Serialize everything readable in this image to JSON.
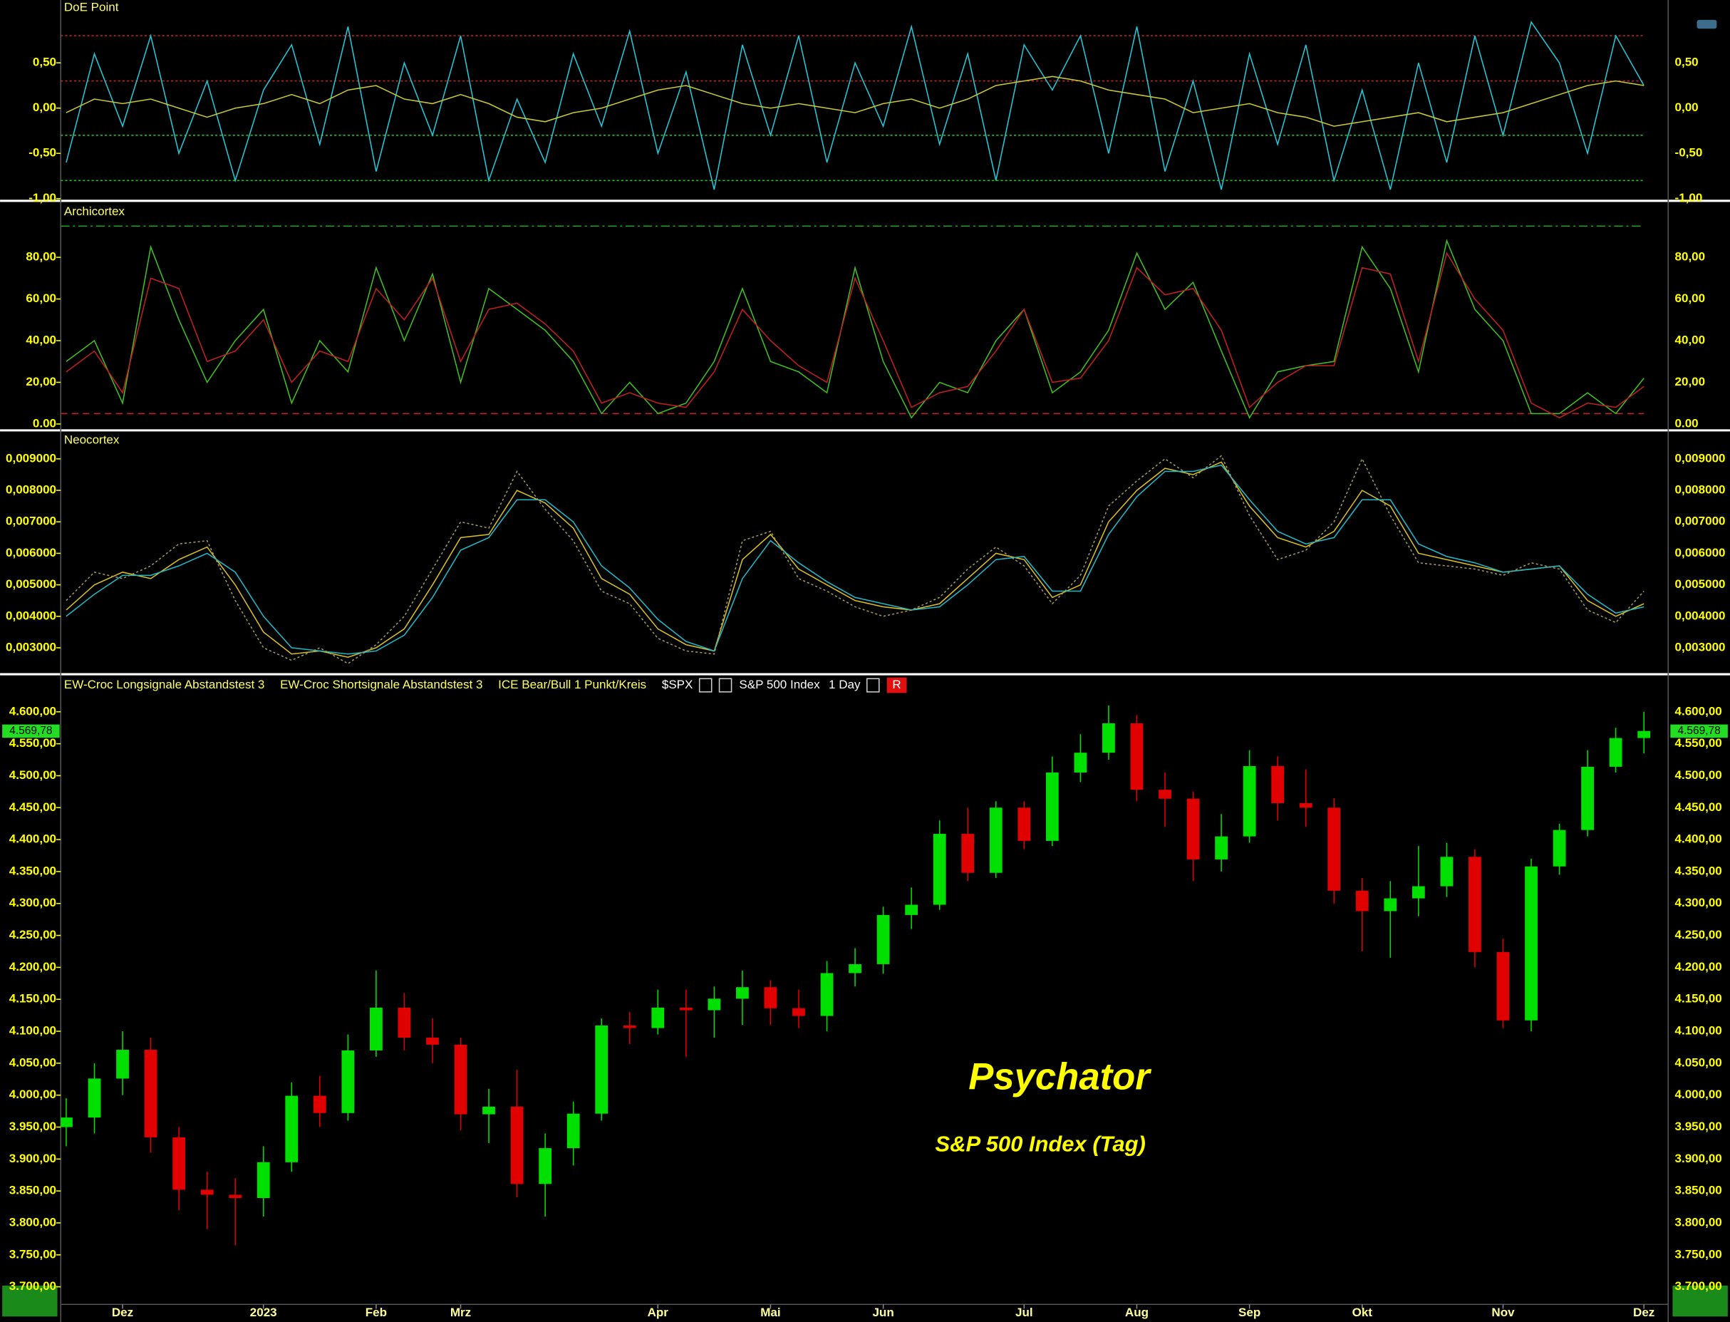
{
  "chart_data": [
    {
      "type": "line",
      "title": "DoE Point",
      "ylim": [
        -1.0,
        1.17
      ],
      "yticks": [
        {
          "value": 0.5,
          "label": "0,50"
        },
        {
          "value": 0,
          "label": "0,00"
        },
        {
          "value": -0.5,
          "label": "-0,50"
        },
        {
          "value": -1,
          "label": "-1,00"
        }
      ],
      "hlines": [
        {
          "value": 0.8,
          "color": "#d02020",
          "style": "dotted"
        },
        {
          "value": 0.3,
          "color": "#d02020",
          "style": "dotted"
        },
        {
          "value": -0.3,
          "color": "#20c020",
          "style": "dotted"
        },
        {
          "value": -0.8,
          "color": "#20c020",
          "style": "dotted"
        }
      ],
      "series": [
        {
          "color": "#22c8d8",
          "style": "solid",
          "values": [
            -0.6,
            0.6,
            -0.2,
            0.8,
            -0.5,
            0.3,
            -0.8,
            0.2,
            0.7,
            -0.4,
            0.9,
            -0.7,
            0.5,
            -0.3,
            0.8,
            -0.8,
            0.1,
            -0.6,
            0.6,
            -0.2,
            0.85,
            -0.5,
            0.4,
            -0.9,
            0.7,
            -0.3,
            0.8,
            -0.6,
            0.5,
            -0.2,
            0.9,
            -0.4,
            0.6,
            -0.8,
            0.7,
            0.2,
            0.8,
            -0.5,
            0.9,
            -0.7,
            0.3,
            -0.9,
            0.6,
            -0.4,
            0.7,
            -0.8,
            0.2,
            -0.9,
            0.5,
            -0.6,
            0.8,
            -0.3,
            0.95,
            0.5,
            -0.5,
            0.8,
            0.25
          ]
        },
        {
          "color": "#c8c832",
          "style": "solid",
          "values": [
            -0.05,
            0.1,
            0.05,
            0.1,
            0.0,
            -0.1,
            0.0,
            0.05,
            0.15,
            0.05,
            0.2,
            0.25,
            0.1,
            0.05,
            0.15,
            0.05,
            -0.1,
            -0.15,
            -0.05,
            0.0,
            0.1,
            0.2,
            0.25,
            0.15,
            0.05,
            0.0,
            0.05,
            0.0,
            -0.05,
            0.05,
            0.1,
            0.0,
            0.1,
            0.25,
            0.3,
            0.35,
            0.3,
            0.2,
            0.15,
            0.1,
            -0.05,
            0.0,
            0.05,
            -0.05,
            -0.1,
            -0.2,
            -0.15,
            -0.1,
            -0.05,
            -0.15,
            -0.1,
            -0.05,
            0.05,
            0.15,
            0.25,
            0.3,
            0.25
          ]
        }
      ]
    },
    {
      "type": "line",
      "title": "Archicortex",
      "ylim": [
        -2,
        105
      ],
      "yticks": [
        {
          "value": 80,
          "label": "80,00"
        },
        {
          "value": 60,
          "label": "60,00"
        },
        {
          "value": 40,
          "label": "40,00"
        },
        {
          "value": 20,
          "label": "20,00"
        },
        {
          "value": 0,
          "label": "0.00"
        }
      ],
      "hlines": [
        {
          "value": 95,
          "color": "#20a020",
          "style": "dashdot"
        },
        {
          "value": 5,
          "color": "#c02020",
          "style": "dashed"
        }
      ],
      "series": [
        {
          "color": "#40c020",
          "style": "solid",
          "values": [
            30,
            40,
            10,
            85,
            50,
            20,
            40,
            55,
            10,
            40,
            25,
            75,
            40,
            72,
            20,
            65,
            55,
            45,
            30,
            5,
            20,
            5,
            10,
            30,
            65,
            30,
            25,
            15,
            75,
            30,
            3,
            20,
            15,
            40,
            55,
            15,
            25,
            45,
            82,
            55,
            68,
            35,
            3,
            25,
            28,
            30,
            85,
            65,
            25,
            88,
            55,
            40,
            5,
            5,
            15,
            5,
            22
          ]
        },
        {
          "color": "#c02020",
          "style": "solid",
          "values": [
            25,
            35,
            15,
            70,
            65,
            30,
            35,
            50,
            20,
            35,
            30,
            65,
            50,
            70,
            30,
            55,
            58,
            48,
            35,
            10,
            15,
            10,
            8,
            25,
            55,
            40,
            28,
            20,
            70,
            40,
            8,
            15,
            18,
            35,
            55,
            20,
            22,
            40,
            75,
            62,
            65,
            45,
            8,
            20,
            28,
            28,
            75,
            72,
            30,
            82,
            60,
            45,
            10,
            3,
            10,
            8,
            18
          ]
        }
      ]
    },
    {
      "type": "line",
      "title": "Neocortex",
      "ylim": [
        0.0023,
        0.0098
      ],
      "yticks": [
        {
          "value": 0.009,
          "label": "0,009000"
        },
        {
          "value": 0.008,
          "label": "0,008000"
        },
        {
          "value": 0.007,
          "label": "0,007000"
        },
        {
          "value": 0.006,
          "label": "0,006000"
        },
        {
          "value": 0.005,
          "label": "0,005000"
        },
        {
          "value": 0.004,
          "label": "0,004000"
        },
        {
          "value": 0.003,
          "label": "0,003000"
        }
      ],
      "hlines": [],
      "series": [
        {
          "color": "#d8c020",
          "style": "solid",
          "values": [
            0.0042,
            0.005,
            0.0054,
            0.0052,
            0.0058,
            0.0062,
            0.005,
            0.0035,
            0.0028,
            0.0029,
            0.0027,
            0.003,
            0.0036,
            0.005,
            0.0065,
            0.0066,
            0.008,
            0.0076,
            0.0068,
            0.0052,
            0.0047,
            0.0036,
            0.0031,
            0.0029,
            0.0058,
            0.0066,
            0.0055,
            0.005,
            0.0045,
            0.0043,
            0.0042,
            0.0044,
            0.0052,
            0.006,
            0.0058,
            0.0046,
            0.005,
            0.007,
            0.008,
            0.0087,
            0.0085,
            0.0089,
            0.0075,
            0.0065,
            0.0062,
            0.0067,
            0.008,
            0.0075,
            0.006,
            0.0058,
            0.0056,
            0.0054,
            0.0055,
            0.0056,
            0.0045,
            0.004,
            0.0044
          ]
        },
        {
          "color": "#20b8c8",
          "style": "solid",
          "values": [
            0.004,
            0.0047,
            0.0053,
            0.0053,
            0.0056,
            0.006,
            0.0054,
            0.004,
            0.003,
            0.0029,
            0.0028,
            0.0029,
            0.0034,
            0.0046,
            0.0061,
            0.0065,
            0.0077,
            0.0077,
            0.007,
            0.0056,
            0.0049,
            0.0039,
            0.0032,
            0.0029,
            0.0052,
            0.0064,
            0.0057,
            0.0051,
            0.0046,
            0.0044,
            0.0042,
            0.0043,
            0.005,
            0.0058,
            0.0059,
            0.0048,
            0.0048,
            0.0066,
            0.0078,
            0.0086,
            0.0086,
            0.0088,
            0.0077,
            0.0067,
            0.0063,
            0.0065,
            0.0077,
            0.0077,
            0.0063,
            0.0059,
            0.0057,
            0.0054,
            0.0055,
            0.0056,
            0.0047,
            0.0041,
            0.0043
          ]
        },
        {
          "color": "#a09860",
          "style": "dotted",
          "values": [
            0.0045,
            0.0054,
            0.0052,
            0.0056,
            0.0063,
            0.0064,
            0.0045,
            0.003,
            0.0026,
            0.003,
            0.0025,
            0.0031,
            0.004,
            0.0055,
            0.007,
            0.0068,
            0.0086,
            0.0074,
            0.0064,
            0.0048,
            0.0044,
            0.0033,
            0.0029,
            0.0028,
            0.0064,
            0.0067,
            0.0052,
            0.0048,
            0.0043,
            0.004,
            0.0042,
            0.0046,
            0.0055,
            0.0062,
            0.0056,
            0.0044,
            0.0053,
            0.0075,
            0.0083,
            0.009,
            0.0084,
            0.0091,
            0.0072,
            0.0058,
            0.0061,
            0.007,
            0.009,
            0.0072,
            0.0057,
            0.0056,
            0.0055,
            0.0053,
            0.0057,
            0.0055,
            0.0042,
            0.0038,
            0.0048
          ]
        }
      ]
    },
    {
      "type": "candlestick",
      "title": "Psychator",
      "subtitle": "S&P 500 Index (Tag)",
      "indicators": [
        "EW-Croc Longsignale Abstandstest 3",
        "EW-Croc Shortsignale Abstandstest 3",
        "ICE Bear/Bull 1 Punkt/Kreis"
      ],
      "symbol": "$SPX",
      "name": "S&P 500 Index",
      "interval": "1 Day",
      "button": "R",
      "up_color": "#00e000",
      "down_color": "#e00000",
      "last_price": {
        "value": 4569.78,
        "label": "4.569,78"
      },
      "ylim": [
        3676,
        4626
      ],
      "yticks": [
        {
          "value": 4600,
          "label": "4.600,00"
        },
        {
          "value": 4550,
          "label": "4.550,00"
        },
        {
          "value": 4500,
          "label": "4.500,00"
        },
        {
          "value": 4450,
          "label": "4.450,00"
        },
        {
          "value": 4400,
          "label": "4.400,00"
        },
        {
          "value": 4350,
          "label": "4.350,00"
        },
        {
          "value": 4300,
          "label": "4.300,00"
        },
        {
          "value": 4250,
          "label": "4.250,00"
        },
        {
          "value": 4200,
          "label": "4.200,00"
        },
        {
          "value": 4150,
          "label": "4.150,00"
        },
        {
          "value": 4100,
          "label": "4.100,00"
        },
        {
          "value": 4050,
          "label": "4.050,00"
        },
        {
          "value": 4000,
          "label": "4.000,00"
        },
        {
          "value": 3950,
          "label": "3.950,00"
        },
        {
          "value": 3900,
          "label": "3.900,00"
        },
        {
          "value": 3850,
          "label": "3.850,00"
        },
        {
          "value": 3800,
          "label": "3.800,00"
        },
        {
          "value": 3750,
          "label": "3.750,00"
        },
        {
          "value": 3700,
          "label": "3.700,00"
        }
      ],
      "categories": [
        null,
        null,
        "Dez",
        null,
        null,
        null,
        null,
        "2023",
        null,
        null,
        null,
        "Feb",
        null,
        null,
        "Mrz",
        null,
        null,
        null,
        null,
        null,
        null,
        "Apr",
        null,
        null,
        null,
        "Mai",
        null,
        null,
        null,
        "Jun",
        null,
        null,
        null,
        null,
        "Jul",
        null,
        null,
        null,
        "Aug",
        null,
        null,
        null,
        "Sep",
        null,
        null,
        null,
        "Okt",
        null,
        null,
        null,
        null,
        "Nov",
        null,
        null,
        null,
        null,
        "Dez"
      ],
      "open": [
        3950,
        3965,
        4026,
        4071,
        3934,
        3852,
        3844,
        3839,
        3895,
        3999,
        3972,
        4070,
        4137,
        4090,
        4079,
        3970,
        3982,
        3861,
        3917,
        3971,
        4109,
        4105,
        4137,
        4133,
        4151,
        4169,
        4136,
        4124,
        4191,
        4205,
        4282,
        4298,
        4409,
        4348,
        4450,
        4398,
        4505,
        4536,
        4582,
        4478,
        4464,
        4369,
        4405,
        4515,
        4457,
        4450,
        4320,
        4288,
        4308,
        4327,
        4373,
        4224,
        4117,
        4358,
        4415,
        4514,
        4559
      ],
      "high": [
        3995,
        4050,
        4100,
        4090,
        3950,
        3880,
        3870,
        3920,
        4020,
        4030,
        4095,
        4195,
        4160,
        4120,
        4090,
        4010,
        4040,
        3940,
        3990,
        4120,
        4130,
        4165,
        4165,
        4170,
        4195,
        4180,
        4165,
        4210,
        4230,
        4295,
        4325,
        4430,
        4450,
        4460,
        4460,
        4530,
        4565,
        4610,
        4595,
        4505,
        4475,
        4440,
        4540,
        4530,
        4510,
        4465,
        4340,
        4335,
        4390,
        4395,
        4385,
        4245,
        4370,
        4425,
        4540,
        4575,
        4600
      ],
      "low": [
        3920,
        3940,
        4000,
        3910,
        3820,
        3790,
        3765,
        3810,
        3880,
        3950,
        3960,
        4060,
        4070,
        4050,
        3945,
        3925,
        3840,
        3810,
        3890,
        3960,
        4080,
        4095,
        4060,
        4090,
        4110,
        4110,
        4105,
        4100,
        4170,
        4190,
        4260,
        4290,
        4335,
        4340,
        4385,
        4390,
        4490,
        4525,
        4460,
        4420,
        4335,
        4350,
        4395,
        4430,
        4420,
        4300,
        4225,
        4215,
        4280,
        4310,
        4200,
        4105,
        4100,
        4345,
        4405,
        4505,
        4535
      ],
      "close": [
        3965,
        4026,
        4071,
        3934,
        3852,
        3844,
        3839,
        3895,
        3999,
        3972,
        4070,
        4137,
        4090,
        4079,
        3970,
        3982,
        3861,
        3917,
        3971,
        4109,
        4105,
        4137,
        4133,
        4151,
        4169,
        4136,
        4124,
        4191,
        4205,
        4282,
        4298,
        4409,
        4348,
        4450,
        4398,
        4505,
        4536,
        4582,
        4478,
        4464,
        4369,
        4405,
        4515,
        4457,
        4450,
        4320,
        4288,
        4308,
        4327,
        4373,
        4224,
        4117,
        4358,
        4415,
        4514,
        4559,
        4570
      ]
    }
  ]
}
